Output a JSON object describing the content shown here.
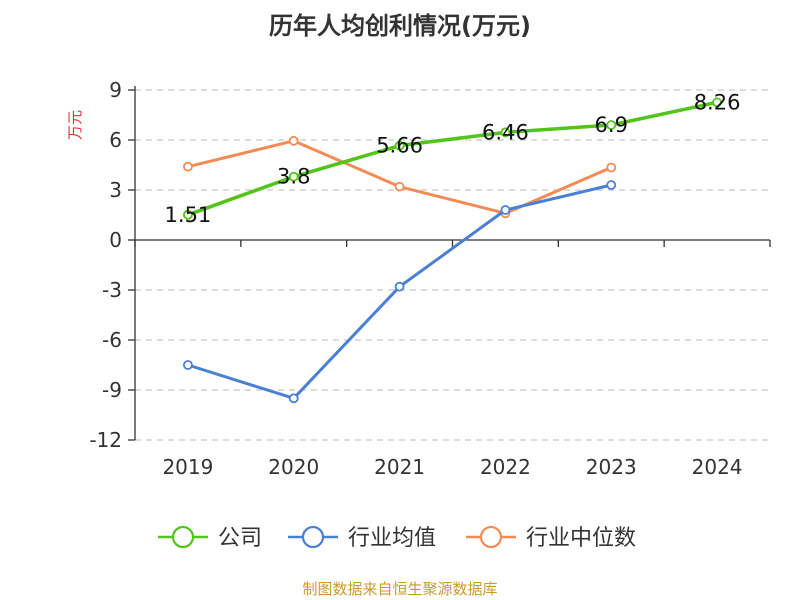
{
  "chart_data": {
    "type": "line",
    "title": "历年人均创利情况(万元)",
    "ylabel": "万元",
    "xlabel": "",
    "categories": [
      "2019",
      "2020",
      "2021",
      "2022",
      "2023",
      "2024"
    ],
    "y_ticks": [
      "9",
      "6",
      "3",
      "0",
      "-3",
      "-6",
      "-9",
      "-12"
    ],
    "ylim": [
      -12,
      9
    ],
    "grid": true,
    "legend_position": "bottom",
    "series": [
      {
        "name": "公司",
        "color": "#52c41a",
        "values": [
          1.51,
          3.8,
          5.66,
          6.46,
          6.9,
          8.26
        ],
        "labels": [
          "1.51",
          "3.8",
          "5.66",
          "6.46",
          "6.9",
          "8.26"
        ],
        "show_labels": true
      },
      {
        "name": "行业均值",
        "color": "#4a7fd6",
        "values": [
          -7.5,
          -9.5,
          -2.8,
          1.8,
          3.3,
          null
        ],
        "show_labels": false
      },
      {
        "name": "行业中位数",
        "color": "#f28c55",
        "values": [
          4.4,
          5.95,
          3.2,
          1.6,
          4.35,
          null
        ],
        "show_labels": false
      }
    ],
    "source": "制图数据来自恒生聚源数据库",
    "colors": {
      "unit_label": "#e0303a",
      "source": "#c99a2e",
      "axis": "#333333",
      "grid": "#c8c8c8"
    }
  }
}
